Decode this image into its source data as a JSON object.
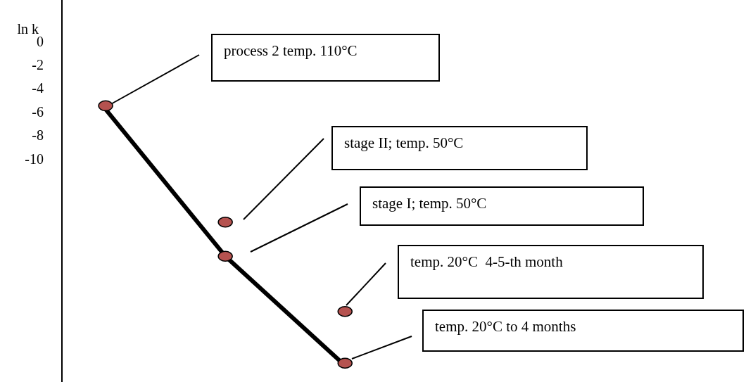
{
  "chart_data": {
    "type": "line",
    "ylabel": "ln k",
    "categories": [
      null,
      null,
      null
    ],
    "series": [
      {
        "color": "#000000",
        "values": [
          -5.8,
          -18.3,
          -27.6
        ]
      },
      {
        "type": "scatter",
        "color": "#b5524f",
        "values": [
          -5.5,
          -18.3,
          -27.4
        ]
      },
      {
        "type": "scatter",
        "color": "#b5524f",
        "values": [
          null,
          -15.4,
          -23.0
        ]
      }
    ],
    "ylim": [
      -29,
      3.5
    ],
    "yticks": [
      0,
      -2,
      -4,
      -6,
      -8,
      -10
    ],
    "grid": false,
    "tick_labels": "y",
    "line_style": "solid",
    "annotations": [
      "process 2 temp. 110°C",
      "stage II; temp. 50°C",
      "stage I; temp. 50°C",
      "temp. 20°C  4-5-th month",
      "temp. 20°C to 4 months"
    ]
  }
}
